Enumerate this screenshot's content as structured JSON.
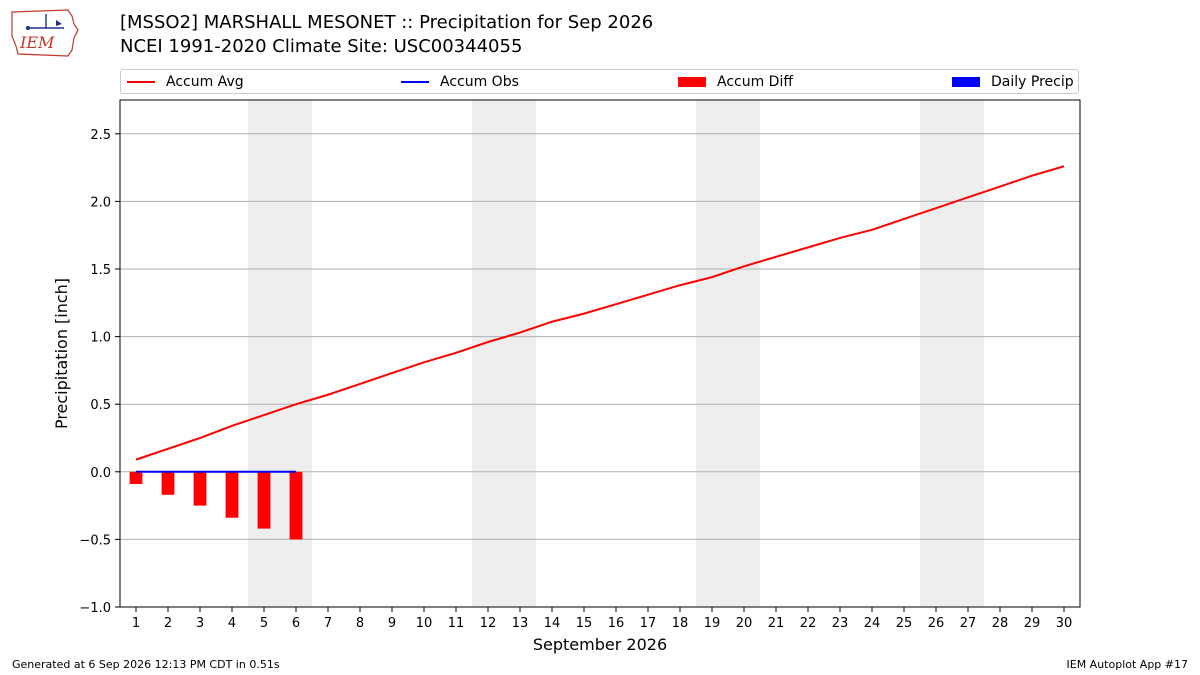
{
  "header": {
    "title_line1": "[MSSO2] MARSHALL MESONET :: Precipitation for Sep 2026",
    "title_line2": "NCEI 1991-2020 Climate Site: USC00344055"
  },
  "logo": {
    "text": "IEM",
    "icon": "iem-iowa-logo"
  },
  "legend": [
    {
      "label": "Accum Avg",
      "color": "#ff0000",
      "style": "line"
    },
    {
      "label": "Accum Obs",
      "color": "#0000ff",
      "style": "line"
    },
    {
      "label": "Accum Diff",
      "color": "#ff0000",
      "style": "box"
    },
    {
      "label": "Daily Precip",
      "color": "#0000ff",
      "style": "box"
    }
  ],
  "footer": {
    "generated": "Generated at 6 Sep 2026 12:13 PM CDT in 0.51s",
    "app": "IEM Autoplot App #17"
  },
  "chart_data": {
    "type": "line",
    "xlabel": "September 2026",
    "ylabel": "Precipitation [inch]",
    "ylim": [
      -1.0,
      2.75
    ],
    "yticks": [
      -1.0,
      -0.5,
      0.0,
      0.5,
      1.0,
      1.5,
      2.0,
      2.5
    ],
    "ytick_labels": [
      "−1.0",
      "−0.5",
      "0.0",
      "0.5",
      "1.0",
      "1.5",
      "2.0",
      "2.5"
    ],
    "xlim": [
      0.5,
      30.5
    ],
    "x": [
      1,
      2,
      3,
      4,
      5,
      6,
      7,
      8,
      9,
      10,
      11,
      12,
      13,
      14,
      15,
      16,
      17,
      18,
      19,
      20,
      21,
      22,
      23,
      24,
      25,
      26,
      27,
      28,
      29,
      30
    ],
    "grid": "horizontal",
    "weekend_shading": [
      [
        4.5,
        6.5
      ],
      [
        11.5,
        13.5
      ],
      [
        18.5,
        20.5
      ],
      [
        25.5,
        27.5
      ]
    ],
    "series": [
      {
        "name": "Accum Avg",
        "type": "line",
        "color": "#ff0000",
        "x": [
          1,
          2,
          3,
          4,
          5,
          6,
          7,
          8,
          9,
          10,
          11,
          12,
          13,
          14,
          15,
          16,
          17,
          18,
          19,
          20,
          21,
          22,
          23,
          24,
          25,
          26,
          27,
          28,
          29,
          30
        ],
        "values": [
          0.09,
          0.17,
          0.25,
          0.34,
          0.42,
          0.5,
          0.57,
          0.65,
          0.73,
          0.81,
          0.88,
          0.96,
          1.03,
          1.11,
          1.17,
          1.24,
          1.31,
          1.38,
          1.44,
          1.52,
          1.59,
          1.66,
          1.73,
          1.79,
          1.87,
          1.95,
          2.03,
          2.11,
          2.19,
          2.26
        ]
      },
      {
        "name": "Accum Obs",
        "type": "line",
        "color": "#0000ff",
        "x": [
          1,
          2,
          3,
          4,
          5,
          6
        ],
        "values": [
          0,
          0,
          0,
          0,
          0,
          0
        ]
      },
      {
        "name": "Accum Diff",
        "type": "bar",
        "color": "#ff0000",
        "x": [
          1,
          2,
          3,
          4,
          5,
          6
        ],
        "values": [
          -0.09,
          -0.17,
          -0.25,
          -0.34,
          -0.42,
          -0.5
        ]
      },
      {
        "name": "Daily Precip",
        "type": "bar",
        "color": "#0000ff",
        "x": [
          1,
          2,
          3,
          4,
          5,
          6
        ],
        "values": [
          0,
          0,
          0,
          0,
          0,
          0
        ]
      }
    ]
  }
}
